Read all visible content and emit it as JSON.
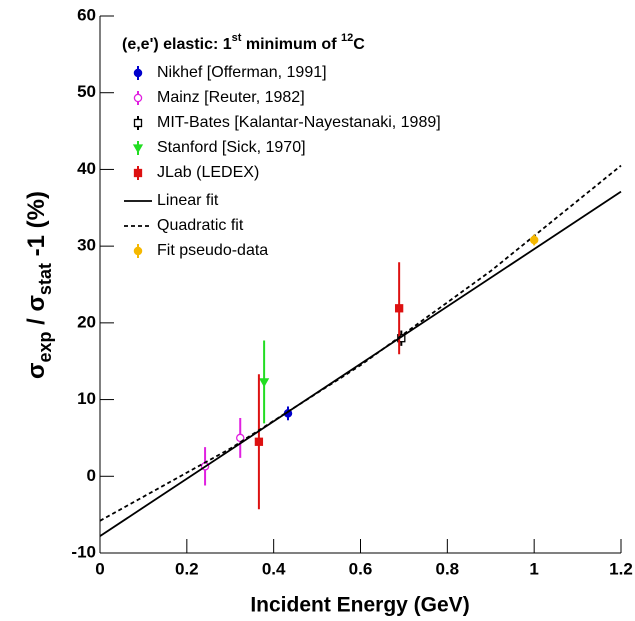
{
  "chart_data": {
    "type": "scatter",
    "legend_title": [
      "(e,e') elastic: 1",
      "st",
      " minimum of ",
      "12",
      "C"
    ],
    "y_label": [
      "σ",
      "exp",
      " / σ",
      "stat",
      " -1 (%)"
    ],
    "x_label": "Incident Energy (GeV)",
    "xlim": [
      0,
      1.2
    ],
    "ylim": [
      -10,
      60
    ],
    "xticks": [
      0,
      0.2,
      0.4,
      0.6,
      0.8,
      1,
      1.2
    ],
    "yticks": [
      -10,
      0,
      10,
      20,
      30,
      40,
      50,
      60
    ],
    "series": [
      {
        "name": "Nikhef [Offerman, 1991]",
        "color": "#0000cc",
        "marker": "circle",
        "filled": true,
        "x": [
          0.433
        ],
        "values": [
          8.2
        ],
        "errors": [
          0.9
        ]
      },
      {
        "name": "Mainz [Reuter, 1982]",
        "color": "#e020e0",
        "marker": "circle",
        "filled": false,
        "x": [
          0.242,
          0.323
        ],
        "values": [
          1.3,
          5.0
        ],
        "errors": [
          2.5,
          2.6
        ]
      },
      {
        "name": "MIT-Bates [Kalantar-Nayestanaki, 1989]",
        "color": "#000000",
        "marker": "square",
        "filled": false,
        "x": [
          0.694
        ],
        "values": [
          18.0
        ],
        "errors": [
          1.0
        ]
      },
      {
        "name": "Stanford [Sick, 1970]",
        "color": "#22dd22",
        "marker": "triangle",
        "filled": true,
        "x": [
          0.378
        ],
        "values": [
          12.3
        ],
        "errors": [
          5.4
        ]
      },
      {
        "name": "JLab (LEDEX)",
        "color": "#dd1111",
        "marker": "square",
        "filled": true,
        "x": [
          0.366,
          0.689
        ],
        "values": [
          4.5,
          21.9
        ],
        "errors": [
          8.8,
          6.0
        ]
      },
      {
        "name": "Linear fit",
        "color": "#000000",
        "marker": "line",
        "dash": false,
        "x": [
          0,
          1.2
        ],
        "values": [
          -7.8,
          37.1
        ]
      },
      {
        "name": "Quadratic fit",
        "color": "#000000",
        "marker": "line",
        "dash": true,
        "x": [
          0,
          0.3,
          0.6,
          0.9,
          1.2
        ],
        "values": [
          -5.8,
          3.61,
          14.47,
          26.76,
          40.5
        ]
      },
      {
        "name": "Fit pseudo-data",
        "color": "#f5b800",
        "marker": "circle",
        "filled": true,
        "x": [
          1.0
        ],
        "values": [
          30.8
        ],
        "errors": [
          0.7
        ]
      }
    ]
  }
}
